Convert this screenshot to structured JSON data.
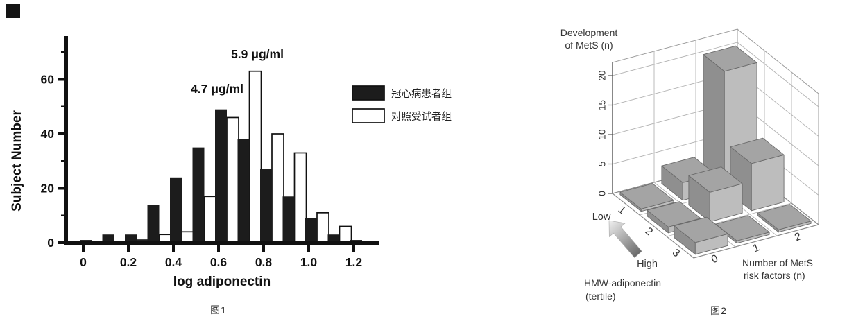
{
  "window": {
    "background": "#ffffff",
    "marker_color": "#141414"
  },
  "figure1": {
    "caption": "图1",
    "ylabel": "Subject Number",
    "xlabel": "log adiponectin",
    "annotation_chd_median": "4.7 μg/ml",
    "annotation_control_median": "5.9 μg/ml",
    "legend": [
      {
        "label": "冠心病患者组",
        "fill": "#1c1c1c",
        "stroke": "#111111"
      },
      {
        "label": "对照受试者组",
        "fill": "#ffffff",
        "stroke": "#111111"
      }
    ]
  },
  "figure2": {
    "caption": "图2",
    "zlabel_line1": "Development",
    "zlabel_line2": "of MetS (n)",
    "xlabel_line1": "Number of MetS",
    "xlabel_line2": "risk factors (n)",
    "ylabel_line1": "HMW-adiponectin",
    "ylabel_line2": "(tertile)",
    "low_label": "Low",
    "high_label": "High"
  },
  "chart_data": [
    {
      "type": "bar",
      "title": "图1 log adiponectin distribution histogram",
      "xlabel": "log adiponectin",
      "ylabel": "Subject Number",
      "x_bins": [
        0.0,
        0.1,
        0.2,
        0.3,
        0.4,
        0.5,
        0.6,
        0.7,
        0.8,
        0.9,
        1.0,
        1.1,
        1.2
      ],
      "xticks": [
        "0",
        "0.2",
        "0.4",
        "0.6",
        "0.8",
        "1.0",
        "1.2"
      ],
      "yticks": [
        0,
        20,
        40,
        60
      ],
      "yticks_minor": [
        10,
        30,
        50,
        70
      ],
      "ylim": [
        0,
        75
      ],
      "series": [
        {
          "name": "冠心病患者组",
          "fill": "#1c1c1c",
          "values": [
            1,
            3,
            3,
            14,
            24,
            35,
            49,
            38,
            27,
            17,
            9,
            3,
            1
          ],
          "median_annotation": "4.7 μg/ml"
        },
        {
          "name": "对照受试者组",
          "fill": "#ffffff",
          "values": [
            0,
            0,
            1,
            3,
            4,
            17,
            46,
            63,
            40,
            33,
            11,
            6,
            0
          ],
          "median_annotation": "5.9 μg/ml"
        }
      ],
      "annotations": [
        {
          "text": "4.7 μg/ml",
          "x": 313,
          "y": 134
        },
        {
          "text": "5.9 μg/ml",
          "x": 371,
          "y": 84
        }
      ],
      "legend_position": "right",
      "grid": false
    },
    {
      "type": "bar3d",
      "title": "图2 Development of MetS by HMW-adiponectin tertile and number of risk factors",
      "zlabel": "Development of MetS (n)",
      "xlabel": "Number of MetS risk factors (n)",
      "x_categories": [
        "0",
        "1",
        "2"
      ],
      "ylabel": "HMW-adiponectin (tertile)",
      "y_categories": [
        "1",
        "2",
        "3"
      ],
      "y_direction": {
        "tertile_1": "Low",
        "tertile_3": "High"
      },
      "zticks": [
        0,
        5,
        10,
        15,
        20
      ],
      "zlim": [
        0,
        20
      ],
      "values_by_tertile": {
        "1": [
          0,
          3,
          20
        ],
        "2": [
          1,
          5,
          8
        ],
        "3": [
          2,
          0,
          0
        ]
      },
      "bar_colors": {
        "top": "#a4a4a4",
        "left": "#8f8f8f",
        "right": "#bdbdbd",
        "edge": "#6a6a6a"
      },
      "arrow_colors": {
        "tail": "#6a6a6a",
        "head": "#f0f0f0"
      }
    }
  ]
}
